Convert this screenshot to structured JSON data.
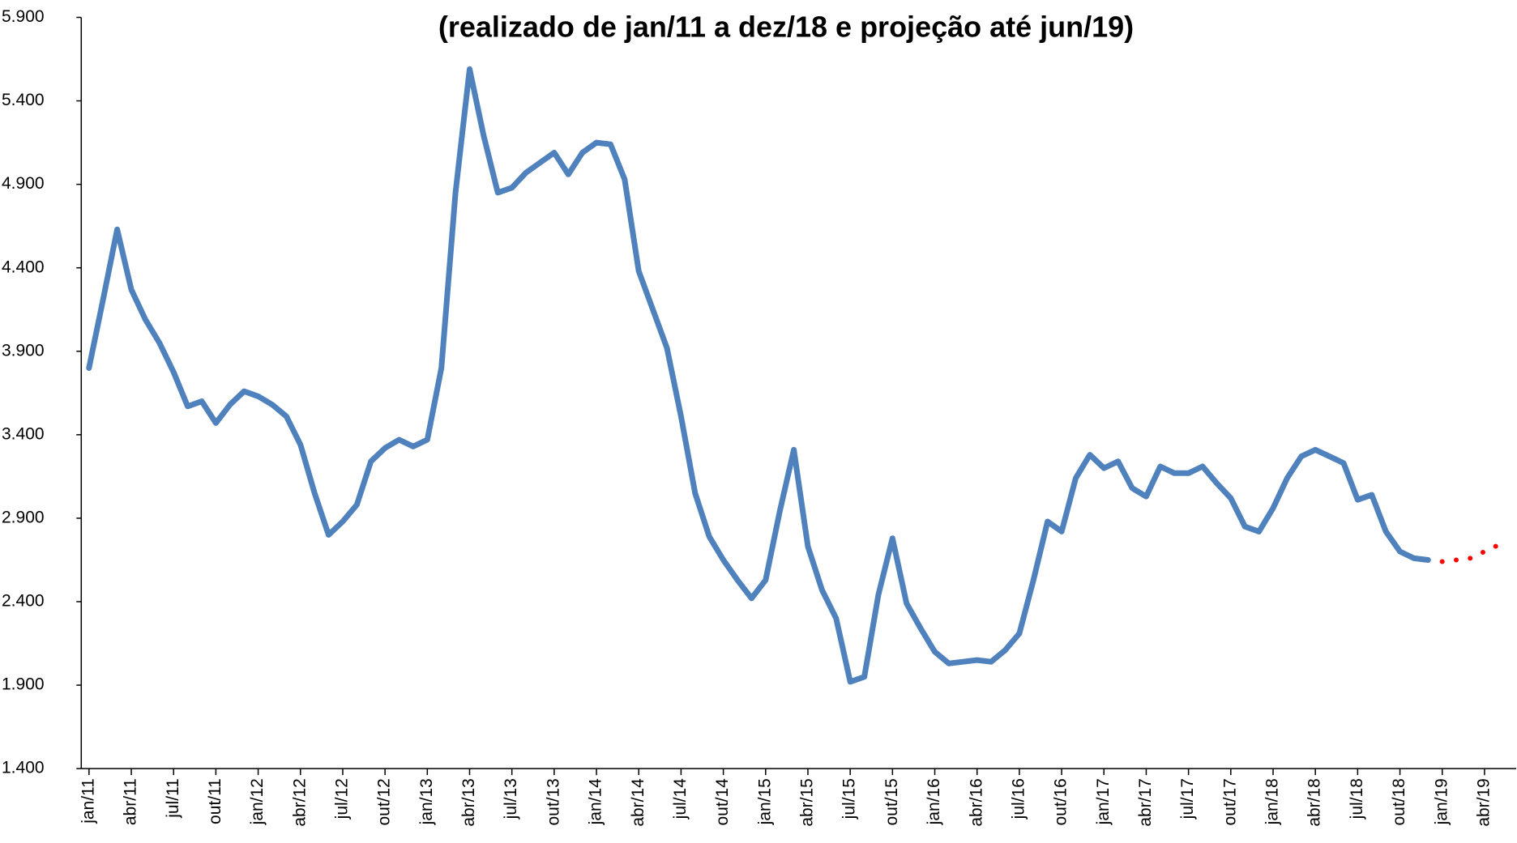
{
  "chart_data": {
    "type": "line",
    "title": "(realizado de jan/11 a dez/18 e projeção até jun/19)",
    "categories": [
      "jan/11",
      null,
      null,
      "abr/11",
      null,
      null,
      "jul/11",
      null,
      null,
      "out/11",
      null,
      null,
      "jan/12",
      null,
      null,
      "abr/12",
      null,
      null,
      "jul/12",
      null,
      null,
      "out/12",
      null,
      null,
      "jan/13",
      null,
      null,
      "abr/13",
      null,
      null,
      "jul/13",
      null,
      null,
      "out/13",
      null,
      null,
      "jan/14",
      null,
      null,
      "abr/14",
      null,
      null,
      "jul/14",
      null,
      null,
      "out/14",
      null,
      null,
      "jan/15",
      null,
      null,
      "abr/15",
      null,
      null,
      "jul/15",
      null,
      null,
      "out/15",
      null,
      null,
      "jan/16",
      null,
      null,
      "abr/16",
      null,
      null,
      "jul/16",
      null,
      null,
      "out/16",
      null,
      null,
      "jan/17",
      null,
      null,
      "abr/17",
      null,
      null,
      "jul/17",
      null,
      null,
      "out/17",
      null,
      null,
      "jan/18",
      null,
      null,
      "abr/18",
      null,
      null,
      "jul/18",
      null,
      null,
      "out/18",
      null,
      null,
      "jan/19",
      null,
      null,
      "abr/19",
      null,
      null
    ],
    "series": [
      {
        "color": "#4f81bd",
        "style": "solid",
        "values": [
          3800,
          4210,
          4630,
          4270,
          4090,
          3950,
          3775,
          3570,
          3600,
          3470,
          3580,
          3660,
          3630,
          3580,
          3510,
          3340,
          3050,
          2800,
          2880,
          2980,
          3240,
          3320,
          3370,
          3330,
          3370,
          3800,
          4850,
          5590,
          5190,
          4850,
          4880,
          4970,
          5030,
          5090,
          4960,
          5090,
          5150,
          5140,
          4930,
          4380,
          4150,
          3920,
          3510,
          3050,
          2790,
          2650,
          2530,
          2420,
          2530,
          2940,
          3310,
          2730,
          2470,
          2300,
          1920,
          1950,
          2440,
          2780,
          2390,
          2240,
          2100,
          2030,
          2040,
          2050,
          2040,
          2110,
          2210,
          2530,
          2880,
          2820,
          3140,
          3280,
          3200,
          3240,
          3080,
          3030,
          3210,
          3170,
          3170,
          3210,
          3110,
          3020,
          2850,
          2820,
          2960,
          3140,
          3270,
          3310,
          3270,
          3230,
          3010,
          3040,
          2820,
          2700,
          2660,
          2650,
          null,
          null,
          null,
          null,
          null,
          null
        ]
      },
      {
        "color": "#ff0000",
        "style": "dotted",
        "values": [
          null,
          null,
          null,
          null,
          null,
          null,
          null,
          null,
          null,
          null,
          null,
          null,
          null,
          null,
          null,
          null,
          null,
          null,
          null,
          null,
          null,
          null,
          null,
          null,
          null,
          null,
          null,
          null,
          null,
          null,
          null,
          null,
          null,
          null,
          null,
          null,
          null,
          null,
          null,
          null,
          null,
          null,
          null,
          null,
          null,
          null,
          null,
          null,
          null,
          null,
          null,
          null,
          null,
          null,
          null,
          null,
          null,
          null,
          null,
          null,
          null,
          null,
          null,
          null,
          null,
          null,
          null,
          null,
          null,
          null,
          null,
          null,
          null,
          null,
          null,
          null,
          null,
          null,
          null,
          null,
          null,
          null,
          null,
          null,
          null,
          null,
          null,
          null,
          null,
          null,
          null,
          null,
          null,
          null,
          null,
          null,
          2640,
          2650,
          2660,
          2700,
          2740,
          null
        ]
      }
    ],
    "ylim": [
      1400,
      5900
    ],
    "yticks": [
      {
        "value": 1400,
        "label": "1.400"
      },
      {
        "value": 1900,
        "label": "1.900"
      },
      {
        "value": 2400,
        "label": "2.400"
      },
      {
        "value": 2900,
        "label": "2.900"
      },
      {
        "value": 3400,
        "label": "3.400"
      },
      {
        "value": 3900,
        "label": "3.900"
      },
      {
        "value": 4400,
        "label": "4.400"
      },
      {
        "value": 4900,
        "label": "4.900"
      },
      {
        "value": 5400,
        "label": "5.400"
      },
      {
        "value": 5900,
        "label": "5.900"
      }
    ]
  }
}
